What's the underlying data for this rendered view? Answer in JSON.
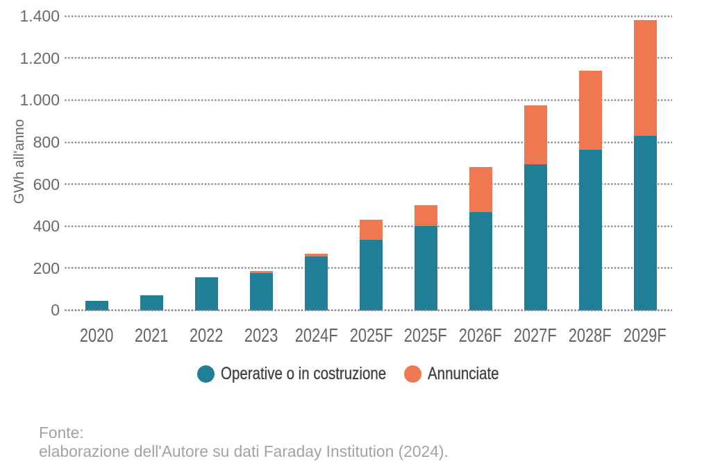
{
  "chart_data": {
    "type": "bar",
    "stacked": true,
    "title": "",
    "xlabel": "",
    "ylabel": "GWh all'anno",
    "categories": [
      "2020",
      "2021",
      "2022",
      "2023",
      "2024F",
      "2025F",
      "2025F",
      "2026F",
      "2027F",
      "2028F",
      "2029F"
    ],
    "series": [
      {
        "name": "Operative o in costruzione",
        "color": "#217e97",
        "values": [
          45,
          70,
          155,
          175,
          255,
          335,
          400,
          465,
          695,
          765,
          830
        ]
      },
      {
        "name": "Annunciate",
        "color": "#ee7851",
        "values": [
          0,
          0,
          0,
          10,
          15,
          95,
          100,
          215,
          280,
          375,
          550
        ]
      }
    ],
    "ylim": [
      0,
      1400
    ],
    "ytick_step": 200,
    "ytick_labels": [
      "0",
      "200",
      "400",
      "600",
      "800",
      "1.000",
      "1.200",
      "1.400"
    ],
    "grid": "horizontal-dotted",
    "legend_position": "bottom"
  },
  "source": {
    "label": "Fonte:",
    "text": "elaborazione dell'Autore su dati Faraday Institution (2024)."
  }
}
